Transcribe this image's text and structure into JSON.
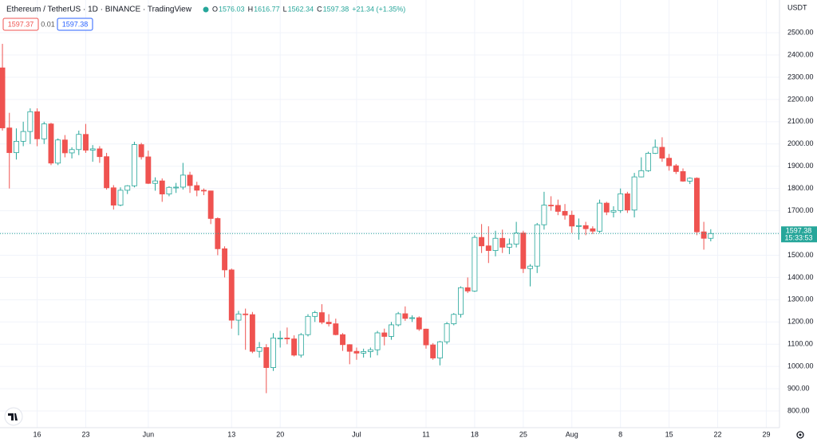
{
  "chart_data": {
    "type": "candlestick",
    "title": "Ethereum / TetherUS · 1D · BINANCE · TradingView",
    "ohlc_header": [
      {
        "label": "O",
        "value": "1576.03"
      },
      {
        "label": "H",
        "value": "1616.77"
      },
      {
        "label": "L",
        "value": "1562.34"
      },
      {
        "label": "C",
        "value": "1597.38"
      }
    ],
    "change": "+21.34 (+1.35%)",
    "sell_price": "1597.37",
    "spread": "0.01",
    "buy_price": "1597.38",
    "y_axis_unit": "USDT",
    "last_price_label": "1597.38",
    "countdown": "15:33:53",
    "up_color": "#26a69a",
    "down_color": "#ef5350",
    "grid": true,
    "ylim": [
      725,
      2647
    ],
    "yticks": [
      {
        "value": 800,
        "label": "800.00"
      },
      {
        "value": 900,
        "label": "900.00"
      },
      {
        "value": 1000,
        "label": "1000.00"
      },
      {
        "value": 1100,
        "label": "1100.00"
      },
      {
        "value": 1200,
        "label": "1200.00"
      },
      {
        "value": 1300,
        "label": "1300.00"
      },
      {
        "value": 1400,
        "label": "1400.00"
      },
      {
        "value": 1500,
        "label": "1500.00"
      },
      {
        "value": 1600,
        "label": "1600.00"
      },
      {
        "value": 1700,
        "label": "1700.00"
      },
      {
        "value": 1800,
        "label": "1800.00"
      },
      {
        "value": 1900,
        "label": "1900.00"
      },
      {
        "value": 2000,
        "label": "2000.00"
      },
      {
        "value": 2100,
        "label": "2100.00"
      },
      {
        "value": 2200,
        "label": "2200.00"
      },
      {
        "value": 2300,
        "label": "2300.00"
      },
      {
        "value": 2400,
        "label": "2400.00"
      },
      {
        "value": 2500,
        "label": "2500.00"
      }
    ],
    "xlim": [
      -0.35,
      111.9
    ],
    "xticks": [
      {
        "value": 5,
        "label": "16"
      },
      {
        "value": 12,
        "label": "23"
      },
      {
        "value": 21,
        "label": "Jun"
      },
      {
        "value": 33,
        "label": "13"
      },
      {
        "value": 40,
        "label": "20"
      },
      {
        "value": 51,
        "label": "Jul"
      },
      {
        "value": 61,
        "label": "11"
      },
      {
        "value": 68,
        "label": "18"
      },
      {
        "value": 75,
        "label": "25"
      },
      {
        "value": 82,
        "label": "Aug"
      },
      {
        "value": 89,
        "label": "8"
      },
      {
        "value": 96,
        "label": "15"
      },
      {
        "value": 103,
        "label": "22"
      },
      {
        "value": 110,
        "label": "29"
      }
    ],
    "open": [
      2342,
      2072,
      1961,
      2012,
      2056,
      2145,
      2023,
      2090,
      1914,
      2018,
      1960,
      1975,
      2043,
      1972,
      1978,
      1943,
      1803,
      1725,
      1792,
      1812,
      1997,
      1942,
      1823,
      1834,
      1775,
      1805,
      1806,
      1860,
      1813,
      1792,
      1789,
      1665,
      1529,
      1434,
      1208,
      1236,
      1233,
      1068,
      1085,
      995,
      1128,
      1128,
      1124,
      1051,
      1143,
      1225,
      1242,
      1199,
      1192,
      1143,
      1098,
      1068,
      1060,
      1067,
      1075,
      1151,
      1135,
      1187,
      1237,
      1216,
      1219,
      1168,
      1097,
      1038,
      1111,
      1192,
      1234,
      1354,
      1339,
      1580,
      1542,
      1521,
      1576,
      1536,
      1550,
      1600,
      1440,
      1451,
      1637,
      1725,
      1724,
      1697,
      1680,
      1631,
      1633,
      1619,
      1608,
      1734,
      1694,
      1701,
      1776,
      1703,
      1852,
      1880,
      1958,
      1985,
      1936,
      1902,
      1876,
      1833,
      1846,
      1605,
      1576.03
    ],
    "high": [
      2450,
      2140,
      2070,
      2100,
      2160,
      2160,
      2100,
      2095,
      2025,
      2040,
      1985,
      2060,
      2090,
      1995,
      1990,
      1960,
      1815,
      1805,
      1815,
      2010,
      2005,
      1970,
      1850,
      1845,
      1810,
      1825,
      1915,
      1875,
      1830,
      1800,
      1790,
      1670,
      1540,
      1440,
      1250,
      1260,
      1245,
      1110,
      1100,
      1150,
      1160,
      1175,
      1140,
      1150,
      1235,
      1250,
      1280,
      1235,
      1215,
      1150,
      1100,
      1085,
      1080,
      1085,
      1160,
      1170,
      1200,
      1245,
      1270,
      1230,
      1225,
      1170,
      1105,
      1115,
      1200,
      1240,
      1360,
      1400,
      1590,
      1640,
      1630,
      1610,
      1615,
      1575,
      1650,
      1610,
      1460,
      1645,
      1785,
      1765,
      1750,
      1730,
      1700,
      1665,
      1650,
      1630,
      1750,
      1740,
      1720,
      1800,
      1785,
      1870,
      1940,
      1965,
      2020,
      2030,
      1955,
      1910,
      1890,
      1850,
      1850,
      1650,
      1616.77
    ],
    "low": [
      2060,
      1800,
      1930,
      1990,
      2000,
      1990,
      2000,
      1905,
      1905,
      1940,
      1935,
      1950,
      1960,
      1920,
      1915,
      1795,
      1705,
      1720,
      1775,
      1805,
      1930,
      1820,
      1790,
      1740,
      1765,
      1780,
      1795,
      1780,
      1765,
      1770,
      1640,
      1500,
      1400,
      1170,
      1140,
      1075,
      1060,
      1040,
      880,
      980,
      1085,
      1100,
      1045,
      1040,
      1135,
      1200,
      1190,
      1180,
      1140,
      1070,
      1010,
      1030,
      1040,
      1040,
      1050,
      1095,
      1120,
      1180,
      1205,
      1200,
      1160,
      1080,
      1030,
      1005,
      1100,
      1185,
      1220,
      1330,
      1335,
      1510,
      1465,
      1495,
      1510,
      1505,
      1535,
      1420,
      1360,
      1420,
      1615,
      1700,
      1680,
      1660,
      1600,
      1570,
      1590,
      1595,
      1600,
      1680,
      1670,
      1690,
      1690,
      1670,
      1850,
      1875,
      1955,
      1920,
      1880,
      1865,
      1830,
      1820,
      1590,
      1525,
      1562.34
    ],
    "close": [
      2072,
      1961,
      2012,
      2056,
      2145,
      2023,
      2090,
      1914,
      2018,
      1960,
      1975,
      2043,
      1972,
      1978,
      1943,
      1803,
      1725,
      1792,
      1812,
      1997,
      1942,
      1823,
      1834,
      1775,
      1805,
      1806,
      1860,
      1813,
      1792,
      1789,
      1665,
      1529,
      1434,
      1208,
      1236,
      1233,
      1068,
      1085,
      995,
      1128,
      1128,
      1124,
      1051,
      1143,
      1225,
      1242,
      1199,
      1192,
      1143,
      1098,
      1068,
      1060,
      1067,
      1075,
      1151,
      1135,
      1187,
      1237,
      1216,
      1219,
      1168,
      1097,
      1038,
      1111,
      1192,
      1234,
      1354,
      1339,
      1580,
      1542,
      1521,
      1576,
      1536,
      1550,
      1600,
      1440,
      1451,
      1637,
      1725,
      1724,
      1697,
      1680,
      1631,
      1633,
      1619,
      1608,
      1734,
      1694,
      1701,
      1776,
      1703,
      1852,
      1880,
      1958,
      1985,
      1936,
      1902,
      1876,
      1833,
      1846,
      1605,
      1576,
      1597.38
    ]
  }
}
